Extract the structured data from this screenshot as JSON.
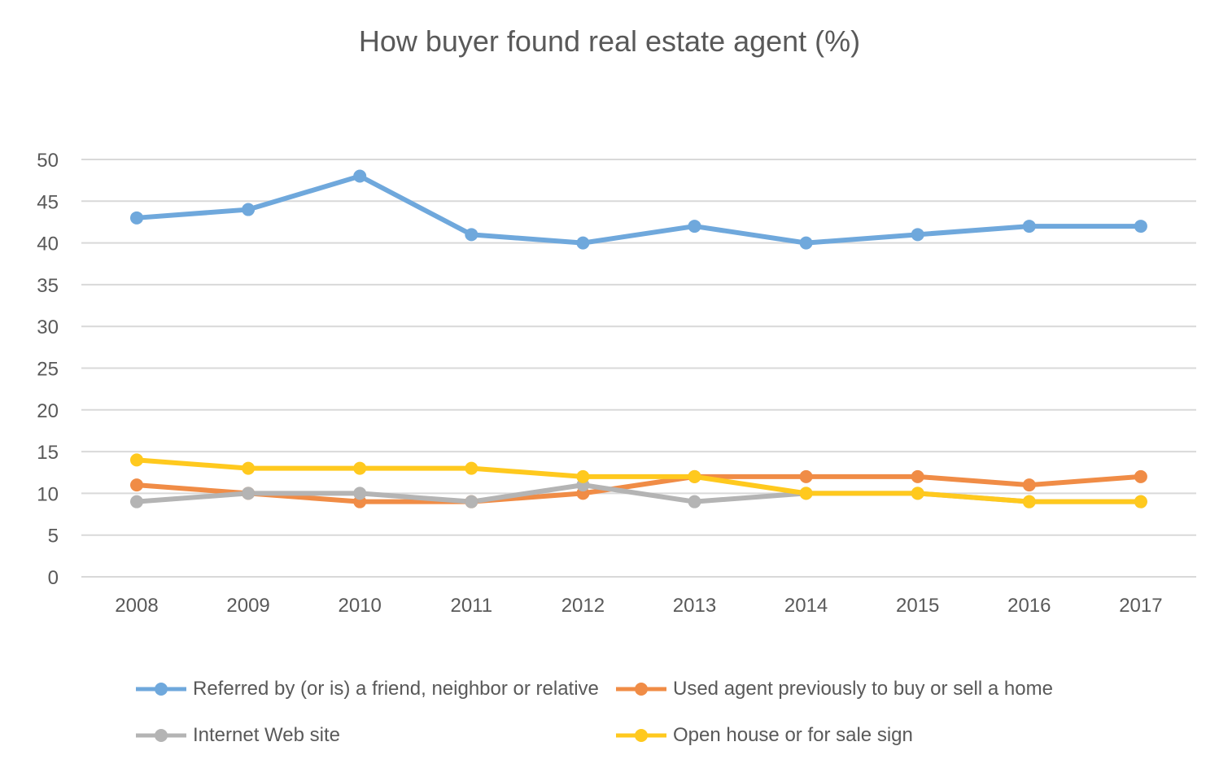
{
  "chart_data": {
    "type": "line",
    "title": "How buyer found real estate agent (%)",
    "xlabel": "",
    "ylabel": "",
    "categories": [
      "2008",
      "2009",
      "2010",
      "2011",
      "2012",
      "2013",
      "2014",
      "2015",
      "2016",
      "2017"
    ],
    "y_ticks": [
      "0",
      "5",
      "10",
      "15",
      "20",
      "25",
      "30",
      "35",
      "40",
      "45",
      "50"
    ],
    "ylim": [
      0,
      50
    ],
    "grid": "horizontal",
    "legend_position": "bottom",
    "series": [
      {
        "name": "Referred by (or is) a friend, neighbor or relative",
        "color": "#6FA8DC",
        "values": [
          43,
          44,
          48,
          41,
          40,
          42,
          40,
          41,
          42,
          42
        ]
      },
      {
        "name": "Used agent previously to buy or sell a home",
        "color": "#F08C46",
        "values": [
          11,
          10,
          9,
          9,
          10,
          12,
          12,
          12,
          11,
          12
        ]
      },
      {
        "name": "Internet Web site",
        "color": "#B4B4B4",
        "values": [
          9,
          10,
          10,
          9,
          11,
          9,
          10,
          10,
          9,
          9
        ]
      },
      {
        "name": "Open house or for sale sign",
        "color": "#FFC91E",
        "values": [
          14,
          13,
          13,
          13,
          12,
          12,
          10,
          10,
          9,
          9
        ]
      }
    ]
  }
}
